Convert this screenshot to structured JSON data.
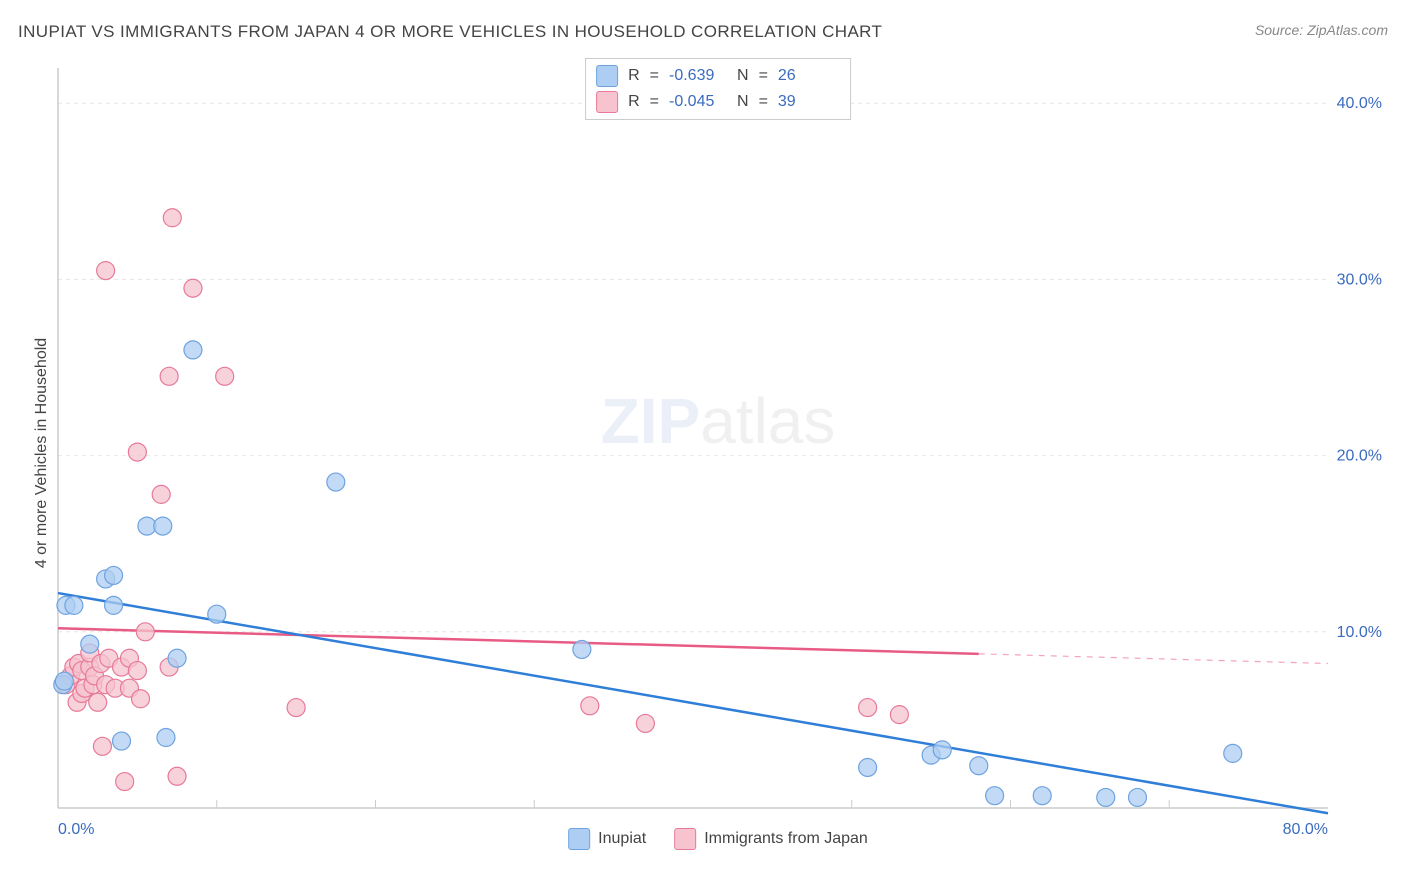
{
  "title": "INUPIAT VS IMMIGRANTS FROM JAPAN 4 OR MORE VEHICLES IN HOUSEHOLD CORRELATION CHART",
  "source": "Source: ZipAtlas.com",
  "y_axis_label": "4 or more Vehicles in Household",
  "watermark": {
    "zip": "ZIP",
    "atlas": "atlas"
  },
  "chart": {
    "type": "scatter",
    "background_color": "#ffffff",
    "grid_color": "#e6e6e6",
    "axis_line_color": "#cccccc",
    "tick_label_color": "#3a6bbf",
    "text_color": "#444444",
    "xlim": [
      0,
      80
    ],
    "ylim": [
      0,
      42
    ],
    "y_ticks": [
      10,
      20,
      30,
      40
    ],
    "y_tick_labels": [
      "10.0%",
      "20.0%",
      "30.0%",
      "40.0%"
    ],
    "x_ticks": [
      0,
      40,
      80
    ],
    "x_tick_labels": [
      "0.0%",
      "",
      "80.0%"
    ],
    "x_minor_ticks": [
      10,
      20,
      30,
      50,
      60,
      70
    ],
    "marker_radius": 9,
    "marker_stroke_width": 1.2,
    "line_width": 2.5,
    "series": [
      {
        "name": "Inupiat",
        "color_fill": "#aecdf2",
        "color_stroke": "#6ea3e0",
        "line_color": "#2f7ed8",
        "R": "-0.639",
        "N": "26",
        "trend": {
          "x1": 0,
          "y1": 12.2,
          "x2": 80,
          "y2": -0.3,
          "solid_to_x": 80,
          "has_dash": false
        },
        "points": [
          [
            0.3,
            7.0
          ],
          [
            0.4,
            7.2
          ],
          [
            0.5,
            11.5
          ],
          [
            1.0,
            11.5
          ],
          [
            2.0,
            9.3
          ],
          [
            3.0,
            13.0
          ],
          [
            3.5,
            13.2
          ],
          [
            3.5,
            11.5
          ],
          [
            4.0,
            3.8
          ],
          [
            5.6,
            16.0
          ],
          [
            6.6,
            16.0
          ],
          [
            6.8,
            4.0
          ],
          [
            8.5,
            26.0
          ],
          [
            7.5,
            8.5
          ],
          [
            10.0,
            11.0
          ],
          [
            17.5,
            18.5
          ],
          [
            33.0,
            9.0
          ],
          [
            51.0,
            2.3
          ],
          [
            55.0,
            3.0
          ],
          [
            55.7,
            3.3
          ],
          [
            58.0,
            2.4
          ],
          [
            59.0,
            0.7
          ],
          [
            62.0,
            0.7
          ],
          [
            66.0,
            0.6
          ],
          [
            68.0,
            0.6
          ],
          [
            74.0,
            3.1
          ]
        ]
      },
      {
        "name": "Immigrants from Japan",
        "color_fill": "#f6c3cf",
        "color_stroke": "#e77a99",
        "line_color": "#e85b85",
        "R": "-0.045",
        "N": "39",
        "trend": {
          "x1": 0,
          "y1": 10.2,
          "x2": 80,
          "y2": 8.2,
          "solid_to_x": 58,
          "has_dash": true
        },
        "points": [
          [
            0.5,
            7.0
          ],
          [
            0.8,
            7.5
          ],
          [
            1.0,
            8.0
          ],
          [
            1.2,
            6.0
          ],
          [
            1.3,
            8.2
          ],
          [
            1.5,
            6.5
          ],
          [
            1.5,
            7.8
          ],
          [
            1.7,
            6.8
          ],
          [
            2.0,
            8.0
          ],
          [
            2.0,
            8.8
          ],
          [
            2.2,
            7.0
          ],
          [
            2.3,
            7.5
          ],
          [
            2.5,
            6.0
          ],
          [
            2.7,
            8.2
          ],
          [
            2.8,
            3.5
          ],
          [
            3.0,
            7.0
          ],
          [
            3.2,
            8.5
          ],
          [
            3.6,
            6.8
          ],
          [
            3.0,
            30.5
          ],
          [
            4.0,
            8.0
          ],
          [
            4.2,
            1.5
          ],
          [
            4.5,
            6.8
          ],
          [
            4.5,
            8.5
          ],
          [
            5.0,
            7.8
          ],
          [
            5.0,
            20.2
          ],
          [
            5.2,
            6.2
          ],
          [
            5.5,
            10.0
          ],
          [
            6.5,
            17.8
          ],
          [
            7.0,
            8.0
          ],
          [
            7.2,
            33.5
          ],
          [
            7.0,
            24.5
          ],
          [
            7.5,
            1.8
          ],
          [
            8.5,
            29.5
          ],
          [
            10.5,
            24.5
          ],
          [
            15.0,
            5.7
          ],
          [
            33.5,
            5.8
          ],
          [
            37.0,
            4.8
          ],
          [
            51.0,
            5.7
          ],
          [
            53.0,
            5.3
          ]
        ]
      }
    ]
  },
  "legend_top": {
    "r_prefix": "R",
    "n_prefix": "N",
    "eq": "="
  },
  "legend_bottom": {
    "items": [
      "Inupiat",
      "Immigrants from Japan"
    ]
  }
}
